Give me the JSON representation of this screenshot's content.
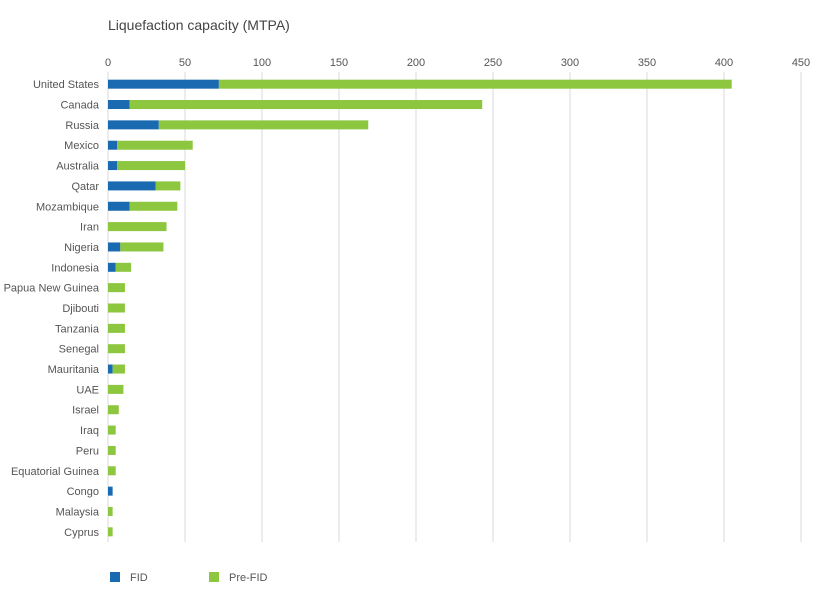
{
  "chart_data": {
    "type": "bar",
    "orientation": "horizontal",
    "stacked": true,
    "title": "Liquefaction capacity (MTPA)",
    "xlim": [
      0,
      450
    ],
    "xticks": [
      0,
      50,
      100,
      150,
      200,
      250,
      300,
      350,
      400,
      450
    ],
    "grid": true,
    "legend_position": "bottom-left",
    "categories": [
      "United States",
      "Canada",
      "Russia",
      "Mexico",
      "Australia",
      "Qatar",
      "Mozambique",
      "Iran",
      "Nigeria",
      "Indonesia",
      "Papua New Guinea",
      "Djibouti",
      "Tanzania",
      "Senegal",
      "Mauritania",
      "UAE",
      "Israel",
      "Iraq",
      "Peru",
      "Equatorial Guinea",
      "Congo",
      "Malaysia",
      "Cyprus"
    ],
    "series": [
      {
        "name": "FID",
        "color": "#1a6ab2",
        "values": [
          72,
          14,
          33,
          6,
          6,
          31,
          14,
          0,
          8,
          5,
          0,
          0,
          0,
          0,
          3,
          0,
          0,
          0,
          0,
          0,
          3,
          0,
          0
        ]
      },
      {
        "name": "Pre-FID",
        "color": "#8dc63f",
        "values": [
          333,
          229,
          136,
          49,
          44,
          16,
          31,
          38,
          28,
          10,
          11,
          11,
          11,
          11,
          8,
          10,
          7,
          5,
          5,
          5,
          0,
          3,
          3
        ]
      }
    ]
  }
}
